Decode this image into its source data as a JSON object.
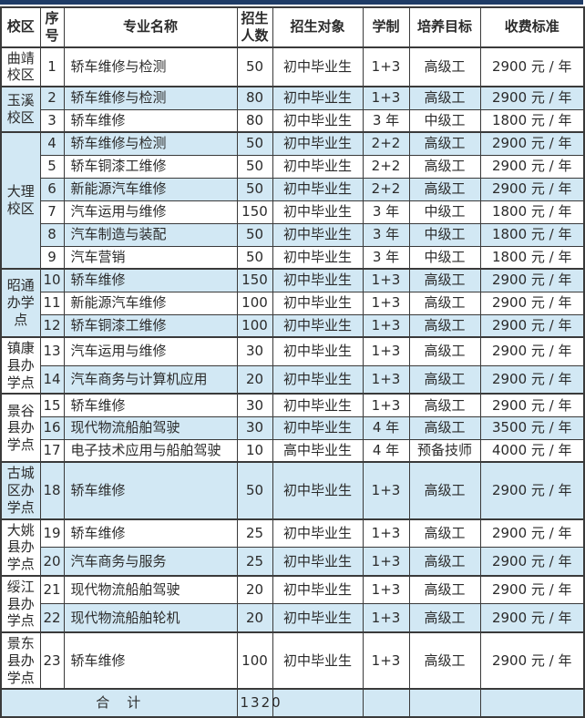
{
  "colors": {
    "accent_bar": "#1e3b66",
    "stripe_blue": "#d2e8f4",
    "border": "#3a3a3a"
  },
  "table": {
    "columns": [
      {
        "key": "campus",
        "label": "校区"
      },
      {
        "key": "index",
        "label": "序号"
      },
      {
        "key": "major",
        "label": "专业名称"
      },
      {
        "key": "quota",
        "label": "招生人数"
      },
      {
        "key": "target",
        "label": "招生对象"
      },
      {
        "key": "duration",
        "label": "学制"
      },
      {
        "key": "goal",
        "label": "培养目标"
      },
      {
        "key": "fee",
        "label": "收费标准"
      }
    ],
    "groups": [
      {
        "campus": "曲靖校区",
        "rows": [
          {
            "index": "1",
            "major": "轿车维修与检测",
            "quota": "50",
            "target": "初中毕业生",
            "duration": "1+3",
            "goal": "高级工",
            "fee": "2900 元 / 年"
          }
        ]
      },
      {
        "campus": "玉溪校区",
        "rows": [
          {
            "index": "2",
            "major": "轿车维修与检测",
            "quota": "80",
            "target": "初中毕业生",
            "duration": "1+3",
            "goal": "高级工",
            "fee": "2900 元 / 年"
          },
          {
            "index": "3",
            "major": "轿车维修",
            "quota": "80",
            "target": "初中毕业生",
            "duration": "3 年",
            "goal": "中级工",
            "fee": "1800 元 / 年"
          }
        ]
      },
      {
        "campus": "大理校区",
        "rows": [
          {
            "index": "4",
            "major": "轿车维修与检测",
            "quota": "50",
            "target": "初中毕业生",
            "duration": "2+2",
            "goal": "高级工",
            "fee": "2900 元 / 年"
          },
          {
            "index": "5",
            "major": "轿车铜漆工维修",
            "quota": "50",
            "target": "初中毕业生",
            "duration": "2+2",
            "goal": "高级工",
            "fee": "2900 元 / 年"
          },
          {
            "index": "6",
            "major": "新能源汽车维修",
            "quota": "50",
            "target": "初中毕业生",
            "duration": "2+2",
            "goal": "高级工",
            "fee": "2900 元 / 年"
          },
          {
            "index": "7",
            "major": "汽车运用与维修",
            "quota": "150",
            "target": "初中毕业生",
            "duration": "3 年",
            "goal": "中级工",
            "fee": "1800 元 / 年"
          },
          {
            "index": "8",
            "major": "汽车制造与装配",
            "quota": "50",
            "target": "初中毕业生",
            "duration": "3 年",
            "goal": "中级工",
            "fee": "1800 元 / 年"
          },
          {
            "index": "9",
            "major": "汽车营销",
            "quota": "50",
            "target": "初中毕业生",
            "duration": "3 年",
            "goal": "中级工",
            "fee": "1800 元 / 年"
          }
        ]
      },
      {
        "campus": "昭通办学点",
        "rows": [
          {
            "index": "10",
            "major": "轿车维修",
            "quota": "150",
            "target": "初中毕业生",
            "duration": "1+3",
            "goal": "高级工",
            "fee": "2900 元 / 年"
          },
          {
            "index": "11",
            "major": "新能源汽车维修",
            "quota": "100",
            "target": "初中毕业生",
            "duration": "1+3",
            "goal": "高级工",
            "fee": "2900 元 / 年"
          },
          {
            "index": "12",
            "major": "轿车铜漆工维修",
            "quota": "100",
            "target": "初中毕业生",
            "duration": "1+3",
            "goal": "高级工",
            "fee": "2900 元 / 年"
          }
        ]
      },
      {
        "campus": "镇康县办学点",
        "rows": [
          {
            "index": "13",
            "major": "汽车运用与维修",
            "quota": "30",
            "target": "初中毕业生",
            "duration": "1+3",
            "goal": "高级工",
            "fee": "2900 元 / 年"
          },
          {
            "index": "14",
            "major": "汽车商务与计算机应用",
            "quota": "20",
            "target": "初中毕业生",
            "duration": "1+3",
            "goal": "高级工",
            "fee": "2900 元 / 年"
          }
        ]
      },
      {
        "campus": "景谷县办学点",
        "rows": [
          {
            "index": "15",
            "major": "轿车维修",
            "quota": "30",
            "target": "初中毕业生",
            "duration": "1+3",
            "goal": "高级工",
            "fee": "2900 元 / 年"
          },
          {
            "index": "16",
            "major": "现代物流船舶驾驶",
            "quota": "30",
            "target": "初中毕业生",
            "duration": "4 年",
            "goal": "高级工",
            "fee": "3500 元 / 年"
          },
          {
            "index": "17",
            "major": "电子技术应用与船舶驾驶",
            "quota": "10",
            "target": "高中毕业生",
            "duration": "4 年",
            "goal": "预备技师",
            "fee": "4000 元 / 年"
          }
        ]
      },
      {
        "campus": "古城区办学点",
        "rows": [
          {
            "index": "18",
            "major": "轿车维修",
            "quota": "50",
            "target": "初中毕业生",
            "duration": "1+3",
            "goal": "高级工",
            "fee": "2900 元 / 年"
          }
        ]
      },
      {
        "campus": "大姚县办学点",
        "rows": [
          {
            "index": "19",
            "major": "轿车维修",
            "quota": "25",
            "target": "初中毕业生",
            "duration": "1+3",
            "goal": "高级工",
            "fee": "2900 元 / 年"
          },
          {
            "index": "20",
            "major": "汽车商务与服务",
            "quota": "25",
            "target": "初中毕业生",
            "duration": "1+3",
            "goal": "高级工",
            "fee": "2900 元 / 年"
          }
        ]
      },
      {
        "campus": "绥江县办学点",
        "rows": [
          {
            "index": "21",
            "major": "现代物流船舶驾驶",
            "quota": "20",
            "target": "初中毕业生",
            "duration": "1+3",
            "goal": "高级工",
            "fee": "2900 元 / 年"
          },
          {
            "index": "22",
            "major": "现代物流船舶轮机",
            "quota": "20",
            "target": "初中毕业生",
            "duration": "1+3",
            "goal": "高级工",
            "fee": "2900 元 / 年"
          }
        ]
      },
      {
        "campus": "景东县办学点",
        "rows": [
          {
            "index": "23",
            "major": "轿车维修",
            "quota": "100",
            "target": "初中毕业生",
            "duration": "1+3",
            "goal": "高级工",
            "fee": "2900 元 / 年"
          }
        ]
      }
    ],
    "footer": {
      "label": "合　计",
      "total": "1320"
    }
  }
}
